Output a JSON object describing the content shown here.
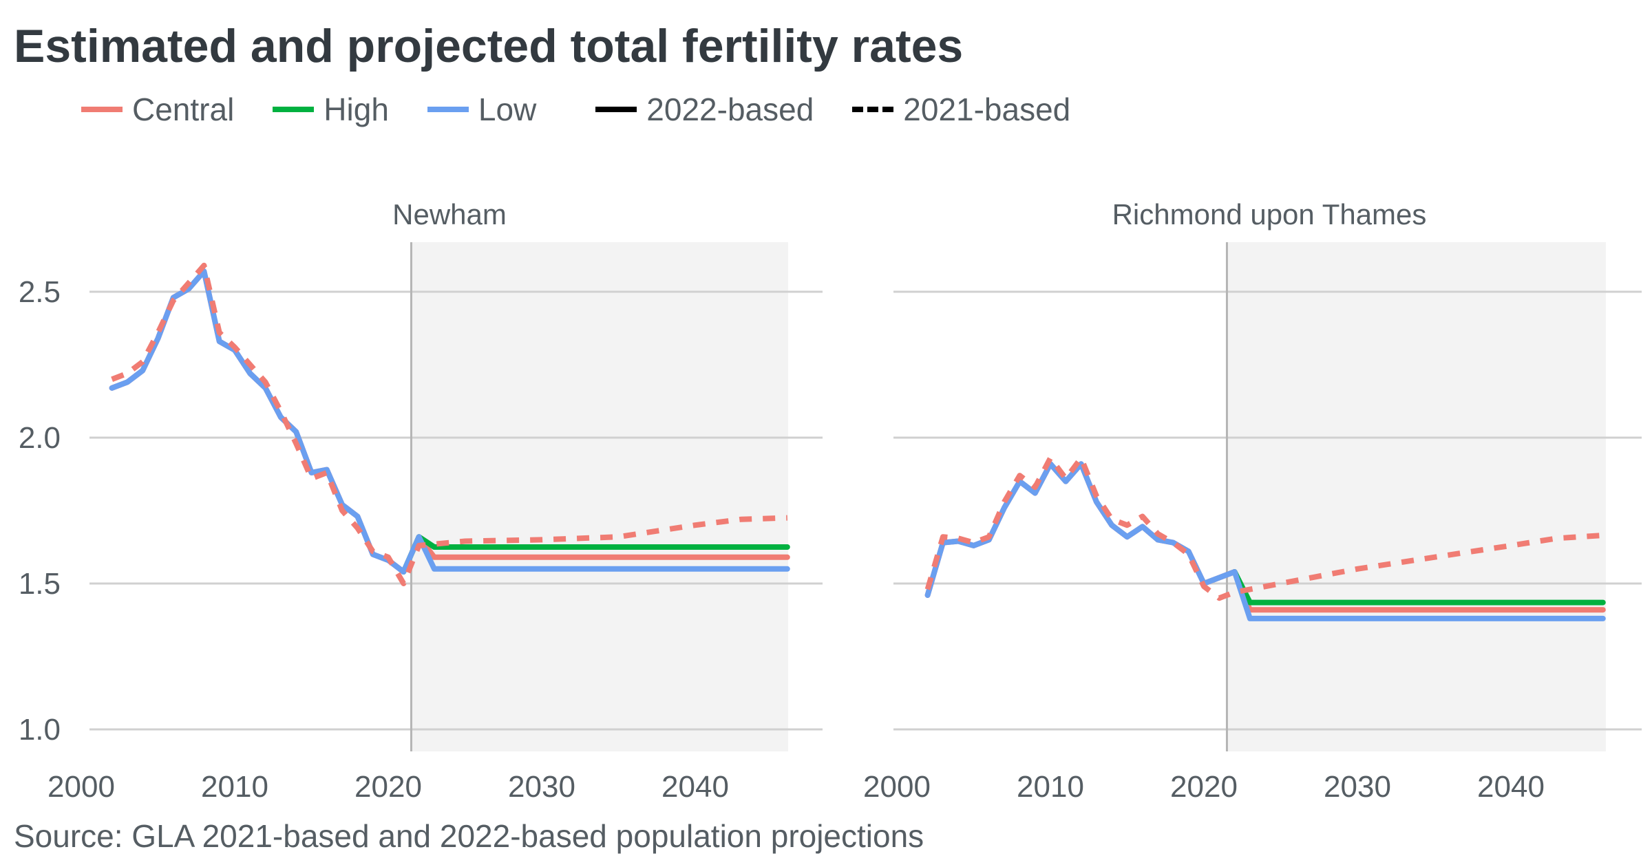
{
  "title": "Estimated and projected total fertility rates",
  "source": "Source: GLA 2021-based and 2022-based population projections",
  "legend": {
    "variants": [
      {
        "name": "Central",
        "color": "#f07c73"
      },
      {
        "name": "High",
        "color": "#00b140"
      },
      {
        "name": "Low",
        "color": "#6a9ff0"
      }
    ],
    "linetypes": [
      {
        "name": "2022-based",
        "style": "solid"
      },
      {
        "name": "2021-based",
        "style": "dashed"
      }
    ]
  },
  "chart_data": [
    {
      "type": "line",
      "facet": "Newham",
      "xlim": [
        2000,
        2046
      ],
      "ylim": [
        1.0,
        2.6
      ],
      "x_ticks": [
        "2000",
        "2010",
        "2020",
        "2030",
        "2040"
      ],
      "y_ticks": [
        "1.0",
        "1.5",
        "2.0",
        "2.5"
      ],
      "projection_start": 2021.5,
      "series": [
        {
          "name": "Central",
          "based": "2022-based",
          "color": "#f07c73",
          "x": [
            2002,
            2003,
            2004,
            2005,
            2006,
            2007,
            2008,
            2009,
            2010,
            2011,
            2012,
            2013,
            2014,
            2015,
            2016,
            2017,
            2018,
            2019,
            2020,
            2021,
            2022,
            2023,
            2046
          ],
          "y": [
            2.17,
            2.19,
            2.23,
            2.34,
            2.48,
            2.51,
            2.57,
            2.33,
            2.3,
            2.22,
            2.17,
            2.07,
            2.02,
            1.88,
            1.89,
            1.77,
            1.73,
            1.6,
            1.58,
            1.54,
            1.66,
            1.59,
            1.59
          ]
        },
        {
          "name": "High",
          "based": "2022-based",
          "color": "#00b140",
          "x": [
            2021,
            2022,
            2023,
            2046
          ],
          "y": [
            1.54,
            1.66,
            1.625,
            1.625
          ]
        },
        {
          "name": "Low",
          "based": "2022-based",
          "color": "#6a9ff0",
          "x": [
            2002,
            2003,
            2004,
            2005,
            2006,
            2007,
            2008,
            2009,
            2010,
            2011,
            2012,
            2013,
            2014,
            2015,
            2016,
            2017,
            2018,
            2019,
            2020,
            2021,
            2022,
            2023,
            2046
          ],
          "y": [
            2.17,
            2.19,
            2.23,
            2.34,
            2.48,
            2.51,
            2.57,
            2.33,
            2.3,
            2.22,
            2.17,
            2.07,
            2.02,
            1.88,
            1.89,
            1.77,
            1.73,
            1.6,
            1.58,
            1.54,
            1.66,
            1.55,
            1.55
          ]
        },
        {
          "name": "Central",
          "based": "2021-based",
          "color": "#f07c73",
          "x": [
            2002,
            2003,
            2004,
            2005,
            2006,
            2007,
            2008,
            2009,
            2010,
            2011,
            2012,
            2013,
            2014,
            2015,
            2016,
            2017,
            2018,
            2019,
            2020,
            2021,
            2022,
            2025,
            2030,
            2035,
            2040,
            2043,
            2046
          ],
          "y": [
            2.2,
            2.22,
            2.26,
            2.36,
            2.47,
            2.53,
            2.59,
            2.36,
            2.31,
            2.25,
            2.19,
            2.09,
            1.98,
            1.86,
            1.88,
            1.75,
            1.69,
            1.61,
            1.59,
            1.5,
            1.63,
            1.645,
            1.65,
            1.66,
            1.7,
            1.72,
            1.725
          ]
        }
      ]
    },
    {
      "type": "line",
      "facet": "Richmond upon Thames",
      "xlim": [
        2000,
        2046
      ],
      "ylim": [
        1.0,
        2.6
      ],
      "x_ticks": [
        "2000",
        "2010",
        "2020",
        "2030",
        "2040"
      ],
      "y_ticks": [
        "1.0",
        "1.5",
        "2.0",
        "2.5"
      ],
      "projection_start": 2021.5,
      "series": [
        {
          "name": "Central",
          "based": "2022-based",
          "color": "#f07c73",
          "x": [
            2002,
            2003,
            2004,
            2005,
            2006,
            2007,
            2008,
            2009,
            2010,
            2011,
            2012,
            2013,
            2014,
            2015,
            2016,
            2017,
            2018,
            2019,
            2020,
            2021,
            2022,
            2023,
            2046
          ],
          "y": [
            1.46,
            1.64,
            1.645,
            1.63,
            1.65,
            1.76,
            1.85,
            1.81,
            1.91,
            1.85,
            1.91,
            1.78,
            1.7,
            1.66,
            1.695,
            1.65,
            1.64,
            1.61,
            1.5,
            1.52,
            1.54,
            1.41,
            1.41
          ]
        },
        {
          "name": "High",
          "based": "2022-based",
          "color": "#00b140",
          "x": [
            2022,
            2023,
            2046
          ],
          "y": [
            1.54,
            1.435,
            1.435
          ]
        },
        {
          "name": "Low",
          "based": "2022-based",
          "color": "#6a9ff0",
          "x": [
            2002,
            2003,
            2004,
            2005,
            2006,
            2007,
            2008,
            2009,
            2010,
            2011,
            2012,
            2013,
            2014,
            2015,
            2016,
            2017,
            2018,
            2019,
            2020,
            2021,
            2022,
            2023,
            2046
          ],
          "y": [
            1.46,
            1.64,
            1.645,
            1.63,
            1.65,
            1.76,
            1.85,
            1.81,
            1.91,
            1.85,
            1.91,
            1.78,
            1.7,
            1.66,
            1.695,
            1.65,
            1.64,
            1.61,
            1.5,
            1.52,
            1.54,
            1.38,
            1.38
          ]
        },
        {
          "name": "Central",
          "based": "2021-based",
          "color": "#f07c73",
          "x": [
            2002,
            2003,
            2004,
            2005,
            2006,
            2007,
            2008,
            2009,
            2010,
            2011,
            2012,
            2013,
            2014,
            2015,
            2016,
            2017,
            2018,
            2019,
            2020,
            2021,
            2022,
            2025,
            2030,
            2035,
            2040,
            2043,
            2046
          ],
          "y": [
            1.48,
            1.66,
            1.655,
            1.64,
            1.66,
            1.78,
            1.87,
            1.83,
            1.93,
            1.86,
            1.93,
            1.8,
            1.72,
            1.7,
            1.73,
            1.67,
            1.64,
            1.6,
            1.49,
            1.45,
            1.47,
            1.5,
            1.55,
            1.59,
            1.63,
            1.655,
            1.665
          ]
        }
      ]
    }
  ]
}
